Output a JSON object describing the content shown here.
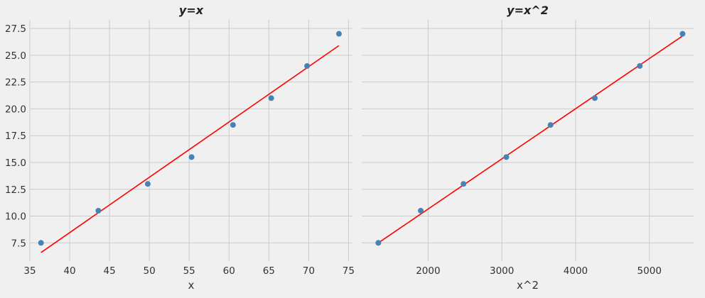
{
  "chart_data": [
    {
      "type": "scatter",
      "title": "y=x",
      "xlabel": "x",
      "ylabel": "",
      "xlim": [
        35,
        75.5
      ],
      "ylim": [
        5.8,
        28.3
      ],
      "xticks": [
        35,
        40,
        45,
        50,
        55,
        60,
        65,
        70,
        75
      ],
      "yticks": [
        7.5,
        10.0,
        12.5,
        15.0,
        17.5,
        20.0,
        22.5,
        25.0,
        27.5
      ],
      "grid": true,
      "series": [
        {
          "kind": "scatter",
          "color": "#4682b4",
          "x": [
            36.4,
            43.6,
            49.8,
            55.3,
            60.5,
            65.3,
            69.8,
            73.8
          ],
          "y": [
            7.5,
            10.5,
            13.0,
            15.5,
            18.5,
            21.0,
            24.0,
            27.0
          ]
        },
        {
          "kind": "line",
          "color": "#ff0000",
          "x": [
            36.4,
            73.8
          ],
          "y": [
            6.6,
            25.9
          ]
        }
      ]
    },
    {
      "type": "scatter",
      "title": "y=x^2",
      "xlabel": "x^2",
      "ylabel": "",
      "xlim": [
        1100,
        5600
      ],
      "ylim": [
        5.8,
        28.3
      ],
      "xticks": [
        2000,
        3000,
        4000,
        5000
      ],
      "yticks": [
        7.5,
        10.0,
        12.5,
        15.0,
        17.5,
        20.0,
        22.5,
        25.0,
        27.5
      ],
      "grid": true,
      "series": [
        {
          "kind": "scatter",
          "color": "#4682b4",
          "x": [
            1325,
            1900,
            2480,
            3060,
            3660,
            4260,
            4870,
            5450
          ],
          "y": [
            7.5,
            10.5,
            13.0,
            15.5,
            18.5,
            21.0,
            24.0,
            27.0
          ]
        },
        {
          "kind": "line",
          "color": "#ff0000",
          "x": [
            1325,
            5450
          ],
          "y": [
            7.5,
            26.8
          ]
        }
      ]
    }
  ]
}
